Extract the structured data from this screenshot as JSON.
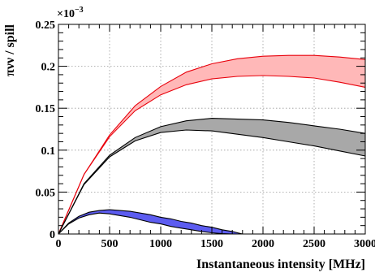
{
  "chart_data": {
    "type": "area",
    "title": "",
    "xlabel": "Instantaneous intensity [MHz]",
    "ylabel": "πνν / spill",
    "y_multiplier": "×10",
    "y_multiplier_exponent": "−3",
    "xlim": [
      0,
      3000
    ],
    "ylim": [
      0,
      0.25
    ],
    "x_ticks": [
      "0",
      "500",
      "1000",
      "1500",
      "2000",
      "2500",
      "3000"
    ],
    "y_ticks": [
      "0",
      "0.05",
      "0.1",
      "0.15",
      "0.2",
      "0.25"
    ],
    "grid": "on",
    "x": [
      0,
      250,
      500,
      750,
      1000,
      1250,
      1500,
      1750,
      2000,
      2250,
      2500,
      2750,
      3000
    ],
    "series": [
      {
        "color": "#e8000b",
        "fill": "#ffb8b8",
        "upper": [
          0,
          0.071,
          0.118,
          0.153,
          0.176,
          0.193,
          0.203,
          0.209,
          0.212,
          0.213,
          0.213,
          0.211,
          0.208
        ],
        "lower": [
          0,
          0.071,
          0.116,
          0.147,
          0.166,
          0.178,
          0.185,
          0.188,
          0.189,
          0.188,
          0.186,
          0.181,
          0.175
        ]
      },
      {
        "color": "#000000",
        "fill": "#a8a8a8",
        "upper": [
          0,
          0.06,
          0.094,
          0.115,
          0.128,
          0.135,
          0.138,
          0.137,
          0.136,
          0.133,
          0.129,
          0.125,
          0.12
        ],
        "lower": [
          0,
          0.059,
          0.092,
          0.111,
          0.121,
          0.124,
          0.123,
          0.119,
          0.115,
          0.11,
          0.105,
          0.099,
          0.093
        ]
      },
      {
        "color": "#000000",
        "fill": "#5c5cf0",
        "x": [
          0,
          100,
          200,
          300,
          400,
          500,
          600,
          700,
          800,
          900,
          1000,
          1100,
          1200,
          1300,
          1400,
          1500,
          1600,
          1700,
          1750,
          1800
        ],
        "upper": [
          0,
          0.013,
          0.021,
          0.026,
          0.028,
          0.029,
          0.028,
          0.027,
          0.025,
          0.023,
          0.02,
          0.018,
          0.015,
          0.013,
          0.01,
          0.008,
          0.005,
          0.003,
          0.0015,
          0.0
        ],
        "lower": [
          0,
          0.012,
          0.019,
          0.023,
          0.025,
          0.024,
          0.022,
          0.02,
          0.017,
          0.014,
          0.012,
          0.009,
          0.007,
          0.005,
          0.003,
          0.0015,
          0.0005,
          0.0,
          0.0,
          0.0
        ]
      }
    ]
  }
}
